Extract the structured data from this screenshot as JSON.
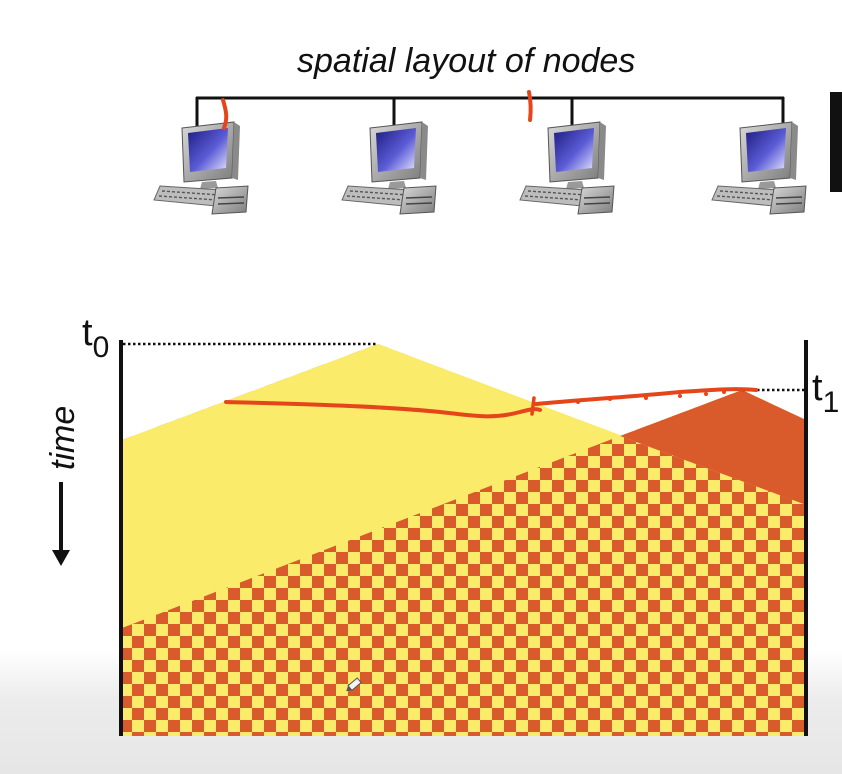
{
  "diagram": {
    "title": "spatial layout of nodes",
    "time_label": "time",
    "t0_label": "t",
    "t0_sub": "0",
    "t1_label": "t",
    "t1_sub": "1"
  },
  "nodes": [
    {
      "icon": "computer-icon"
    },
    {
      "icon": "computer-icon"
    },
    {
      "icon": "computer-icon"
    },
    {
      "icon": "computer-icon"
    }
  ],
  "colors": {
    "yellow": "#fbeb6a",
    "orange_red": "#d95b2b",
    "annotation": "#e5451b",
    "line": "#111111"
  }
}
